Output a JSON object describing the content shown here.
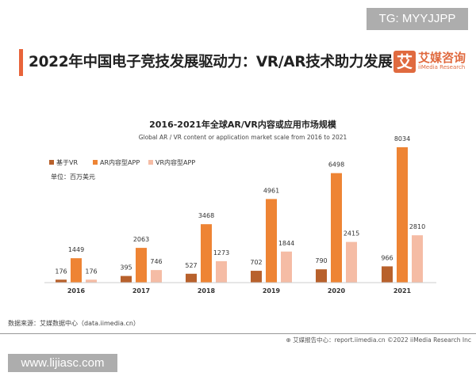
{
  "watermark_top": "TG: MYYJJPP",
  "watermark_bottom": "www.lijiasc.com",
  "header": {
    "title": "2022年中国电子竞技发展驱动力：VR/AR技术助力发展",
    "logo_mark": "艾",
    "logo_cn": "艾媒咨询",
    "logo_en": "iiMedia Research"
  },
  "chart_data": {
    "type": "bar",
    "title": "2016-2021年全球AR/VR内容或应用市场规模",
    "subtitle": "Global AR / VR content or application market scale from 2016 to 2021",
    "unit": "单位：百万美元",
    "categories": [
      "2016",
      "2017",
      "2018",
      "2019",
      "2020",
      "2021"
    ],
    "series": [
      {
        "name": "基于VR",
        "color": "#b8612c",
        "values": [
          176,
          395,
          527,
          702,
          790,
          966
        ]
      },
      {
        "name": "AR内容型APP",
        "color": "#ee8434",
        "values": [
          1449,
          2063,
          3468,
          4961,
          6498,
          8034
        ]
      },
      {
        "name": "VR内容型APP",
        "color": "#f5bca5",
        "values": [
          176,
          746,
          1273,
          1844,
          2415,
          2810
        ]
      }
    ],
    "legend_position": "top-left",
    "grid": false
  },
  "footer": {
    "source": "数据来源：艾媒数据中心（data.iimedia.cn）",
    "report": "艾媒报告中心：report.iimedia.cn   ©2022  iiMedia Research  Inc"
  }
}
